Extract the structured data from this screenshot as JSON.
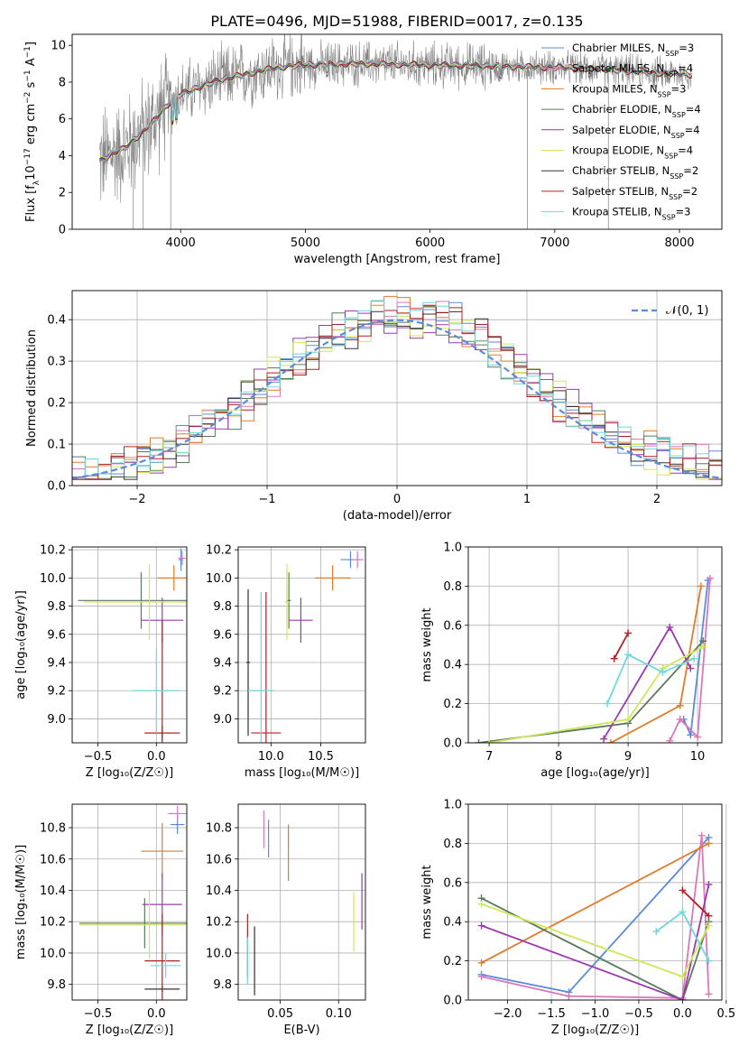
{
  "page_title": "PLATE=0496, MJD=51988, FIBERID=0017, z=0.135",
  "colors": {
    "chabrier_miles": "#5b8bd9",
    "salpeter_miles": "#da77b9",
    "kroupa_miles": "#e07b2a",
    "chabrier_elodie": "#5a7a5a",
    "salpeter_elodie": "#9a3aad",
    "kroupa_elodie": "#cde85a",
    "chabrier_stelib": "#333333",
    "salpeter_stelib": "#b02020",
    "kroupa_stelib": "#6fd8de",
    "data": "#808080"
  },
  "chart_data": [
    {
      "id": "spectrum",
      "type": "line",
      "title": "PLATE=0496, MJD=51988, FIBERID=0017, z=0.135",
      "xlabel": "wavelength [Angstrom, rest frame]",
      "ylabel_parts": [
        "Flux [f",
        "λ",
        "10",
        "−17",
        " erg cm",
        "−2",
        " s",
        "−1",
        " A",
        "−1",
        "]"
      ],
      "xlim": [
        3130,
        8340
      ],
      "ylim": [
        0,
        10.6
      ],
      "xticks": [
        4000,
        5000,
        6000,
        7000,
        8000
      ],
      "yticks": [
        0,
        2,
        4,
        6,
        8,
        10
      ],
      "continuum_shape": {
        "x": [
          3350,
          3450,
          3550,
          3650,
          3750,
          3850,
          3950,
          4100,
          4300,
          4500,
          4700,
          4900,
          5100,
          5400,
          5800,
          6200,
          6600,
          7000,
          7400,
          7800,
          8100
        ],
        "y": [
          3.7,
          4.1,
          4.4,
          5.0,
          5.6,
          6.4,
          7.2,
          7.6,
          8.1,
          8.4,
          8.7,
          8.9,
          8.95,
          9.0,
          8.95,
          8.9,
          8.85,
          8.8,
          8.7,
          8.5,
          8.4
        ]
      },
      "legend": [
        {
          "name": "Chabrier MILES",
          "nssp": "3",
          "color": "#5b8bd9"
        },
        {
          "name": "Salpeter MILES",
          "nssp": "4",
          "color": "#da77b9"
        },
        {
          "name": "Kroupa MILES",
          "nssp": "3",
          "color": "#e07b2a"
        },
        {
          "name": "Chabrier ELODIE",
          "nssp": "4",
          "color": "#5a7a5a"
        },
        {
          "name": "Salpeter ELODIE",
          "nssp": "4",
          "color": "#9a3aad"
        },
        {
          "name": "Kroupa ELODIE",
          "nssp": "4",
          "color": "#cde85a"
        },
        {
          "name": "Chabrier STELIB",
          "nssp": "2",
          "color": "#333333"
        },
        {
          "name": "Salpeter STELIB",
          "nssp": "2",
          "color": "#b02020"
        },
        {
          "name": "Kroupa STELIB",
          "nssp": "3",
          "color": "#6fd8de"
        }
      ]
    },
    {
      "id": "residuals",
      "type": "line",
      "xlabel": "(data-model)/error",
      "ylabel": "Normed distribution",
      "xlim": [
        -2.5,
        2.5
      ],
      "ylim": [
        0,
        0.47
      ],
      "xticks": [
        -2,
        -1,
        0,
        1,
        2
      ],
      "yticks": [
        0.0,
        0.1,
        0.2,
        0.3,
        0.4
      ],
      "gaussian": {
        "label": "𝒩(0, 1)",
        "mu": 0,
        "sigma": 1,
        "color": "#5b8bd9"
      },
      "bin_width": 0.1
    },
    {
      "id": "age_vs_Z",
      "type": "scatter",
      "xlabel": "Z [log₁₀(Z/Z☉)]",
      "ylabel": "age  [log₁₀(age/yr)]",
      "xlim": [
        -0.72,
        0.26
      ],
      "ylim": [
        8.83,
        10.22
      ],
      "xticks": [
        -0.5,
        0.0
      ],
      "yticks": [
        9.0,
        9.2,
        9.4,
        9.6,
        9.8,
        10.0,
        10.2
      ],
      "points": [
        {
          "model": "Chabrier MILES",
          "x": 0.21,
          "xerr": 0.02,
          "y": 10.13,
          "yerr": 0.08
        },
        {
          "model": "Salpeter MILES",
          "x": 0.22,
          "xerr": 0.03,
          "y": 10.14,
          "yerr": 0.05
        },
        {
          "model": "Kroupa MILES",
          "x": 0.15,
          "xerr": 0.14,
          "y": 10.0,
          "yerr": 0.09
        },
        {
          "model": "Chabrier ELODIE",
          "x": -0.13,
          "xerr": 0.54,
          "y": 9.84,
          "yerr": 0.2
        },
        {
          "model": "Salpeter ELODIE",
          "x": 0.05,
          "xerr": 0.18,
          "y": 9.7,
          "yerr": 0.16
        },
        {
          "model": "Kroupa ELODIE",
          "x": -0.06,
          "xerr": 0.56,
          "y": 9.83,
          "yerr": 0.27
        },
        {
          "model": "Chabrier STELIB",
          "x": 0.05,
          "xerr": 0.15,
          "y": 8.9,
          "yerr": 0.05
        },
        {
          "model": "Salpeter STELIB",
          "x": 0.05,
          "xerr": 0.15,
          "y": 8.9,
          "yerr": 0.8
        },
        {
          "model": "Kroupa STELIB",
          "x": 0.0,
          "xerr": 0.2,
          "y": 9.2,
          "yerr": 0.3
        }
      ]
    },
    {
      "id": "age_vs_mass",
      "type": "scatter",
      "xlabel": "mass [log₁₀(M/M☉)]",
      "ylabel": "",
      "xlim": [
        9.67,
        10.95
      ],
      "ylim": [
        8.83,
        10.22
      ],
      "xticks": [
        10.0,
        10.5
      ],
      "yticks": [
        9.0,
        9.2,
        9.4,
        9.6,
        9.8,
        10.0,
        10.2
      ],
      "points": [
        {
          "model": "Chabrier MILES",
          "x": 10.8,
          "xerr": 0.1,
          "y": 10.13,
          "yerr": 0.06
        },
        {
          "model": "Salpeter MILES",
          "x": 10.87,
          "xerr": 0.06,
          "y": 10.13,
          "yerr": 0.06
        },
        {
          "model": "Kroupa MILES",
          "x": 10.62,
          "xerr": 0.18,
          "y": 10.0,
          "yerr": 0.09
        },
        {
          "model": "Chabrier ELODIE",
          "x": 10.18,
          "xerr": 0.02,
          "y": 9.84,
          "yerr": 0.2
        },
        {
          "model": "Salpeter ELODIE",
          "x": 10.3,
          "xerr": 0.12,
          "y": 9.7,
          "yerr": 0.16
        },
        {
          "model": "Kroupa ELODIE",
          "x": 10.16,
          "xerr": 0.02,
          "y": 9.83,
          "yerr": 0.27
        },
        {
          "model": "Chabrier STELIB",
          "x": 9.77,
          "xerr": 0.02,
          "y": 9.4,
          "yerr": 0.52
        },
        {
          "model": "Salpeter STELIB",
          "x": 9.95,
          "xerr": 0.15,
          "y": 8.9,
          "yerr": 1.0
        },
        {
          "model": "Kroupa STELIB",
          "x": 9.9,
          "xerr": 0.13,
          "y": 9.2,
          "yerr": 0.7
        }
      ]
    },
    {
      "id": "weight_vs_age",
      "type": "line",
      "xlabel": "age  [log₁₀(age/yr)]",
      "ylabel": "mass weight",
      "xlim": [
        6.7,
        10.35
      ],
      "ylim": [
        0,
        1.0
      ],
      "xticks": [
        7,
        8,
        9,
        10
      ],
      "yticks": [
        0.0,
        0.2,
        0.4,
        0.6,
        0.8,
        1.0
      ],
      "series": [
        {
          "model": "Chabrier MILES",
          "x": [
            9.8,
            9.9,
            10.15
          ],
          "y": [
            0.12,
            0.04,
            0.83
          ]
        },
        {
          "model": "Salpeter MILES",
          "x": [
            9.6,
            9.75,
            10.0,
            10.18
          ],
          "y": [
            0.01,
            0.12,
            0.03,
            0.84
          ]
        },
        {
          "model": "Kroupa MILES",
          "x": [
            8.75,
            9.75,
            10.05
          ],
          "y": [
            0.0,
            0.19,
            0.8
          ]
        },
        {
          "model": "Chabrier ELODIE",
          "x": [
            6.85,
            9.0,
            10.08
          ],
          "y": [
            0.0,
            0.1,
            0.52
          ]
        },
        {
          "model": "Salpeter ELODIE",
          "x": [
            8.65,
            9.6,
            9.9
          ],
          "y": [
            0.02,
            0.59,
            0.38
          ]
        },
        {
          "model": "Kroupa ELODIE",
          "x": [
            7.0,
            9.0,
            9.5,
            10.08
          ],
          "y": [
            0.0,
            0.12,
            0.38,
            0.49
          ]
        },
        {
          "model": "Salpeter STELIB",
          "x": [
            8.8,
            9.0
          ],
          "y": [
            0.43,
            0.56
          ]
        },
        {
          "model": "Kroupa STELIB",
          "x": [
            8.7,
            9.0,
            9.5,
            9.95
          ],
          "y": [
            0.2,
            0.45,
            0.36,
            0.43
          ]
        }
      ]
    },
    {
      "id": "mass_vs_Z",
      "type": "scatter",
      "xlabel": "Z [log₁₀(Z/Z☉)]",
      "ylabel": "mass [log₁₀(M/M☉)]",
      "xlim": [
        -0.72,
        0.26
      ],
      "ylim": [
        9.7,
        10.95
      ],
      "xticks": [
        -0.5,
        0.0
      ],
      "yticks": [
        9.8,
        10.0,
        10.2,
        10.4,
        10.6,
        10.8
      ],
      "points": [
        {
          "model": "Chabrier MILES",
          "x": 0.18,
          "xerr": 0.06,
          "y": 10.82,
          "yerr": 0.06
        },
        {
          "model": "Salpeter MILES",
          "x": 0.18,
          "xerr": 0.08,
          "y": 10.89,
          "yerr": 0.05
        },
        {
          "model": "Kroupa MILES",
          "x": 0.05,
          "xerr": 0.18,
          "y": 10.65,
          "yerr": 0.18
        },
        {
          "model": "Chabrier ELODIE",
          "x": -0.1,
          "xerr": 0.56,
          "y": 10.19,
          "yerr": 0.16
        },
        {
          "model": "Salpeter ELODIE",
          "x": 0.05,
          "xerr": 0.17,
          "y": 10.31,
          "yerr": 0.2
        },
        {
          "model": "Kroupa ELODIE",
          "x": -0.06,
          "xerr": 0.6,
          "y": 10.18,
          "yerr": 0.22
        },
        {
          "model": "Chabrier STELIB",
          "x": 0.05,
          "xerr": 0.15,
          "y": 9.77,
          "yerr": 0.02
        },
        {
          "model": "Salpeter STELIB",
          "x": 0.05,
          "xerr": 0.15,
          "y": 9.95,
          "yerr": 0.3
        },
        {
          "model": "Kroupa STELIB",
          "x": 0.08,
          "xerr": 0.13,
          "y": 9.92,
          "yerr": 0.08
        }
      ]
    },
    {
      "id": "mass_vs_ebv",
      "type": "scatter",
      "xlabel": "E(B-V)",
      "ylabel": "",
      "xlim": [
        0.014,
        0.123
      ],
      "ylim": [
        9.7,
        10.95
      ],
      "xticks": [
        0.05,
        0.1
      ],
      "yticks": [
        9.8,
        10.0,
        10.2,
        10.4,
        10.6,
        10.8
      ],
      "points": [
        {
          "model": "Chabrier MILES",
          "x": 0.04,
          "yerr": 0.12,
          "y": 10.73
        },
        {
          "model": "Salpeter MILES",
          "x": 0.036,
          "yerr": 0.12,
          "y": 10.79
        },
        {
          "model": "Kroupa MILES",
          "x": 0.057,
          "yerr": 0.18,
          "y": 10.64
        },
        {
          "model": "Kroupa ELODIE",
          "x": 0.113,
          "yerr": 0.19,
          "y": 10.2
        },
        {
          "model": "Salpeter ELODIE",
          "x": 0.12,
          "yerr": 0.18,
          "y": 10.33
        },
        {
          "model": "Chabrier STELIB",
          "x": 0.028,
          "yerr": 0.22,
          "y": 9.95
        },
        {
          "model": "Salpeter STELIB",
          "x": 0.022,
          "yerr": 0.2,
          "y": 10.05
        },
        {
          "model": "Kroupa STELIB",
          "x": 0.022,
          "yerr": 0.15,
          "y": 9.95
        }
      ]
    },
    {
      "id": "weight_vs_Z",
      "type": "line",
      "xlabel": "Z [log₁₀(Z/Z☉)]",
      "ylabel": "mass weight",
      "xlim": [
        -2.45,
        0.45
      ],
      "ylim": [
        0,
        1.0
      ],
      "xticks": [
        -2.0,
        -1.5,
        -1.0,
        -0.5,
        0.0,
        0.5
      ],
      "yticks": [
        0.0,
        0.2,
        0.4,
        0.6,
        0.8,
        1.0
      ],
      "series": [
        {
          "model": "Chabrier MILES",
          "x": [
            -2.3,
            -1.3,
            0.3
          ],
          "y": [
            0.13,
            0.04,
            0.83
          ]
        },
        {
          "model": "Salpeter MILES",
          "x": [
            -2.3,
            -1.3,
            0.0,
            0.22,
            0.3
          ],
          "y": [
            0.12,
            0.02,
            0.01,
            0.84,
            0.03
          ]
        },
        {
          "model": "Kroupa MILES",
          "x": [
            -2.3,
            0.3
          ],
          "y": [
            0.19,
            0.8
          ]
        },
        {
          "model": "Chabrier ELODIE",
          "x": [
            -2.3,
            0.0,
            0.3
          ],
          "y": [
            0.52,
            0.0,
            0.4
          ]
        },
        {
          "model": "Salpeter ELODIE",
          "x": [
            -2.3,
            0.0,
            0.3
          ],
          "y": [
            0.38,
            0.0,
            0.59
          ]
        },
        {
          "model": "Kroupa ELODIE",
          "x": [
            -2.3,
            0.0,
            0.3
          ],
          "y": [
            0.49,
            0.12,
            0.38
          ]
        },
        {
          "model": "Salpeter STELIB",
          "x": [
            0.0,
            0.3
          ],
          "y": [
            0.56,
            0.43
          ]
        },
        {
          "model": "Kroupa STELIB",
          "x": [
            -0.3,
            0.0,
            0.3
          ],
          "y": [
            0.35,
            0.45,
            0.2
          ]
        }
      ]
    }
  ]
}
